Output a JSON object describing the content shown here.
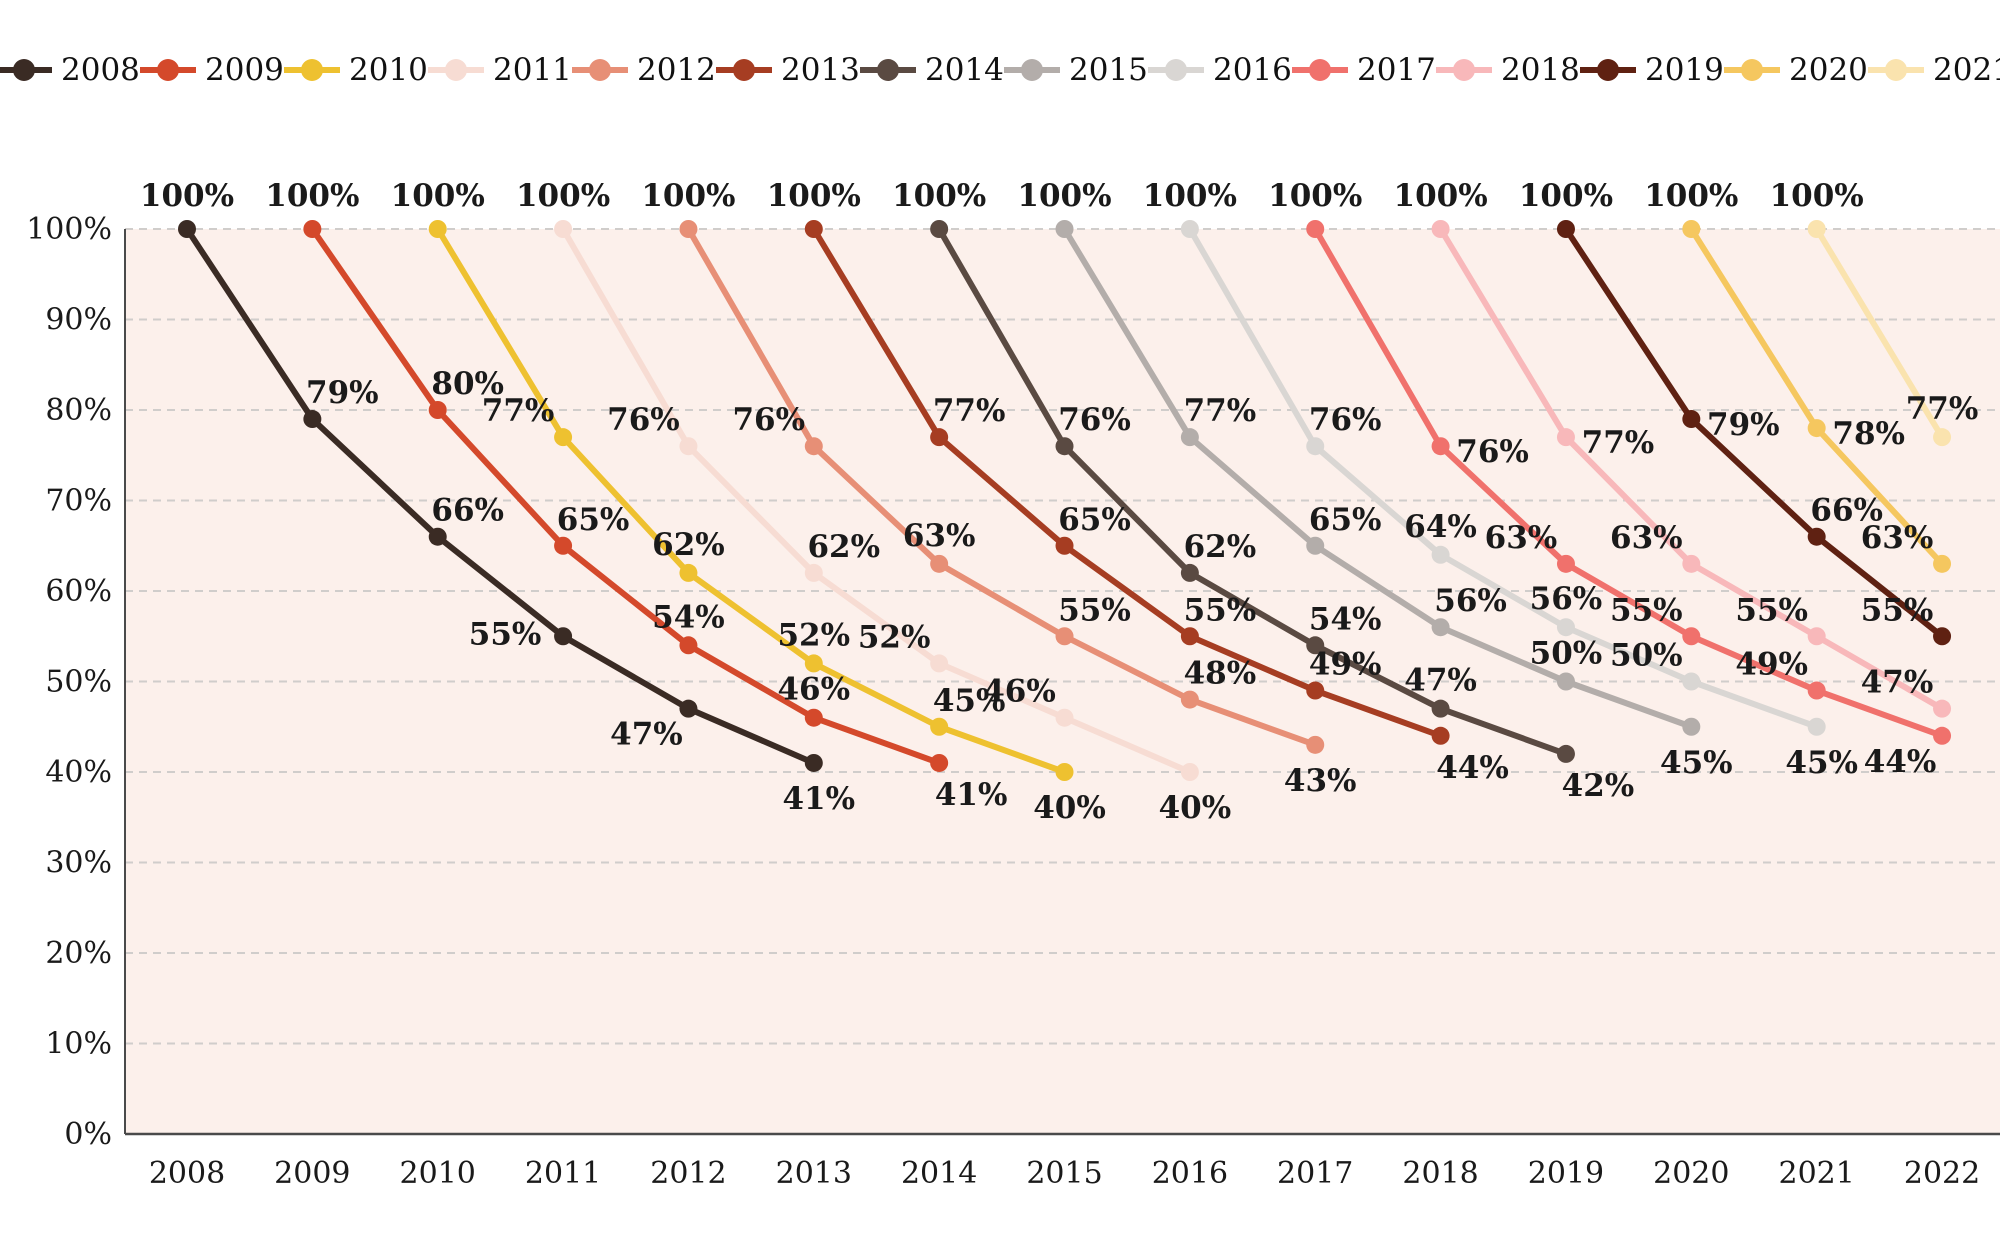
{
  "legend": {
    "items": [
      {
        "label": "2008",
        "color": "#3A2B24"
      },
      {
        "label": "2009",
        "color": "#D4492B"
      },
      {
        "label": "2010",
        "color": "#EEC130"
      },
      {
        "label": "2011",
        "color": "#F7DCD3"
      },
      {
        "label": "2012",
        "color": "#E78F76"
      },
      {
        "label": "2013",
        "color": "#A63D22"
      },
      {
        "label": "2014",
        "color": "#5A4A42"
      },
      {
        "label": "2015",
        "color": "#B3ADAA"
      },
      {
        "label": "2016",
        "color": "#D9D6D3"
      },
      {
        "label": "2017",
        "color": "#F0716C"
      },
      {
        "label": "2018",
        "color": "#F8B8BA"
      },
      {
        "label": "2019",
        "color": "#5F2112"
      },
      {
        "label": "2020",
        "color": "#F5C75F"
      },
      {
        "label": "2021",
        "color": "#FAE3AE"
      }
    ]
  },
  "chart_data": {
    "type": "line",
    "title": "",
    "xlabel": "",
    "ylabel": "",
    "ylim": [
      0,
      100
    ],
    "grid": "horizontal-dashed",
    "legend_position": "top",
    "plot_bg": "#FCF0EB",
    "grid_color": "#D0CDCB",
    "axis_color": "#4A4A4A",
    "label_color": "#1A1A1A",
    "x_categories": [
      "2008",
      "2009",
      "2010",
      "2011",
      "2012",
      "2013",
      "2014",
      "2015",
      "2016",
      "2017",
      "2018",
      "2019",
      "2020",
      "2021",
      "2022"
    ],
    "y_ticks": [
      "0%",
      "10%",
      "20%",
      "30%",
      "40%",
      "50%",
      "60%",
      "70%",
      "80%",
      "90%",
      "100%"
    ],
    "value_suffix": "%",
    "series": [
      {
        "name": "2008",
        "color": "#3A2B24",
        "start_year": 2008,
        "values": [
          100,
          79,
          66,
          55,
          47,
          41
        ],
        "label_pos": [
          "top",
          "ar",
          "ar",
          "l",
          "bl",
          "b"
        ]
      },
      {
        "name": "2009",
        "color": "#D4492B",
        "start_year": 2009,
        "values": [
          100,
          80,
          65,
          54,
          46,
          41
        ],
        "label_pos": [
          "top",
          "ar",
          "ar",
          "a",
          "a",
          "br"
        ]
      },
      {
        "name": "2010",
        "color": "#EEC130",
        "start_year": 2010,
        "values": [
          100,
          77,
          62,
          52,
          45,
          40
        ],
        "label_pos": [
          "top",
          "al",
          "a",
          "a",
          "ar",
          "b"
        ]
      },
      {
        "name": "2011",
        "color": "#F7DCD3",
        "start_year": 2011,
        "values": [
          100,
          76,
          62,
          52,
          46,
          40
        ],
        "label_pos": [
          "top",
          "al",
          "ar",
          "al",
          "al",
          "b"
        ]
      },
      {
        "name": "2012",
        "color": "#E78F76",
        "start_year": 2012,
        "values": [
          100,
          76,
          63,
          55,
          48,
          43
        ],
        "label_pos": [
          "top",
          "al",
          "a",
          "ar",
          "ar",
          "b"
        ]
      },
      {
        "name": "2013",
        "color": "#A63D22",
        "start_year": 2013,
        "values": [
          100,
          77,
          65,
          55,
          49,
          44
        ],
        "label_pos": [
          "top",
          "ar",
          "ar",
          "ar",
          "ar",
          "br"
        ]
      },
      {
        "name": "2014",
        "color": "#5A4A42",
        "start_year": 2014,
        "values": [
          100,
          76,
          62,
          54,
          47,
          42
        ],
        "label_pos": [
          "top",
          "ar",
          "ar",
          "ar",
          "a",
          "br"
        ]
      },
      {
        "name": "2015",
        "color": "#B3ADAA",
        "start_year": 2015,
        "values": [
          100,
          77,
          65,
          56,
          50,
          45
        ],
        "label_pos": [
          "top",
          "ar",
          "ar",
          "ar",
          "a",
          "b"
        ]
      },
      {
        "name": "2016",
        "color": "#D9D6D3",
        "start_year": 2016,
        "values": [
          100,
          76,
          64,
          56,
          50,
          45
        ],
        "label_pos": [
          "top",
          "ar",
          "a",
          "a",
          "al",
          "b"
        ]
      },
      {
        "name": "2017",
        "color": "#F0716C",
        "start_year": 2017,
        "values": [
          100,
          76,
          63,
          55,
          49,
          44
        ],
        "label_pos": [
          "top",
          "r",
          "al",
          "al",
          "al",
          "bl"
        ]
      },
      {
        "name": "2018",
        "color": "#F8B8BA",
        "start_year": 2018,
        "values": [
          100,
          77,
          63,
          55,
          47
        ],
        "label_pos": [
          "top",
          "r",
          "al",
          "al",
          "al"
        ]
      },
      {
        "name": "2019",
        "color": "#5F2112",
        "start_year": 2019,
        "values": [
          100,
          79,
          66,
          55
        ],
        "label_pos": [
          "top",
          "r",
          "ar",
          "al"
        ]
      },
      {
        "name": "2020",
        "color": "#F5C75F",
        "start_year": 2020,
        "values": [
          100,
          78,
          63
        ],
        "label_pos": [
          "top",
          "r",
          "al"
        ]
      },
      {
        "name": "2021",
        "color": "#FAE3AE",
        "start_year": 2021,
        "values": [
          100,
          77
        ],
        "label_pos": [
          "top",
          "a"
        ]
      }
    ]
  }
}
